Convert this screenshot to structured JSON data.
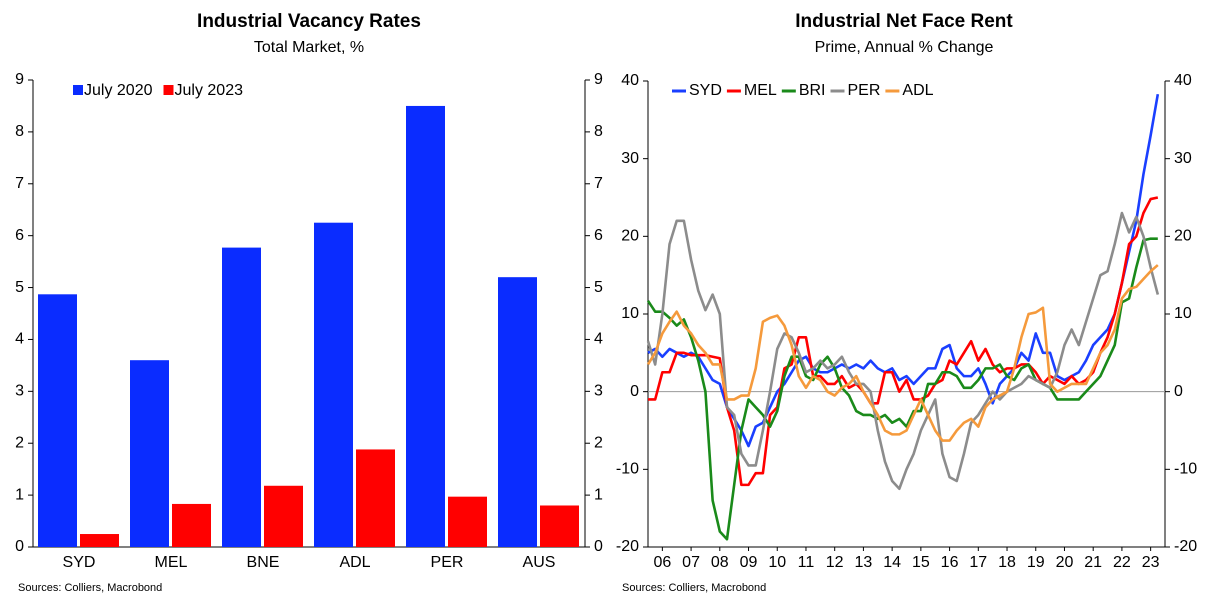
{
  "chart_data": [
    {
      "type": "bar",
      "title": "Industrial Vacancy Rates",
      "subtitle": "Total Market, %",
      "source": "Sources: Colliers, Macrobond",
      "categories": [
        "SYD",
        "MEL",
        "BNE",
        "ADL",
        "PER",
        "AUS"
      ],
      "series": [
        {
          "name": "July 2020",
          "color": "#0a2cff",
          "values": [
            4.87,
            3.6,
            5.77,
            6.25,
            8.5,
            5.2
          ]
        },
        {
          "name": "July 2023",
          "color": "#ff0000",
          "values": [
            0.25,
            0.83,
            1.18,
            1.88,
            0.97,
            0.8
          ]
        }
      ],
      "ylim": [
        0,
        9
      ],
      "yticks": [
        0,
        1,
        2,
        3,
        4,
        5,
        6,
        7,
        8,
        9
      ],
      "y2lim": [
        0,
        9
      ],
      "y2ticks": [
        0,
        1,
        2,
        3,
        4,
        5,
        6,
        7,
        8,
        9
      ],
      "legend": "upper left",
      "grid": false
    },
    {
      "type": "line",
      "title": "Industrial Net Face Rent",
      "subtitle": "Prime, Annual % Change",
      "source": "Sources: Colliers, Macrobond",
      "x": [
        2006,
        2006.25,
        2006.5,
        2006.75,
        2007,
        2007.25,
        2007.5,
        2007.75,
        2008,
        2008.25,
        2008.5,
        2008.75,
        2009,
        2009.25,
        2009.5,
        2009.75,
        2010,
        2010.25,
        2010.5,
        2010.75,
        2011,
        2011.25,
        2011.5,
        2011.75,
        2012,
        2012.25,
        2012.5,
        2012.75,
        2013,
        2013.25,
        2013.5,
        2013.75,
        2014,
        2014.25,
        2014.5,
        2014.75,
        2015,
        2015.25,
        2015.5,
        2015.75,
        2016,
        2016.25,
        2016.5,
        2016.75,
        2017,
        2017.25,
        2017.5,
        2017.75,
        2018,
        2018.25,
        2018.5,
        2018.75,
        2019,
        2019.25,
        2019.5,
        2019.75,
        2020,
        2020.25,
        2020.5,
        2020.75,
        2021,
        2021.25,
        2021.5,
        2021.75,
        2022,
        2022.25,
        2022.5,
        2022.75,
        2023,
        2023.25,
        2023.5,
        2023.75
      ],
      "series": [
        {
          "name": "SYD",
          "color": "#1a3fff",
          "values": [
            5,
            5.5,
            4.5,
            5.5,
            5,
            4.5,
            5,
            4.5,
            3,
            1.5,
            1,
            -2,
            -3.5,
            -5,
            -7,
            -4.5,
            -4,
            -2,
            0,
            1,
            2.5,
            4,
            4.5,
            3,
            2.5,
            2.5,
            3,
            3.5,
            3,
            3.5,
            3,
            4,
            3,
            2.5,
            3,
            1.5,
            2,
            1,
            2,
            3,
            3,
            5.5,
            6,
            3,
            2,
            2,
            3,
            1,
            -1.5,
            1,
            2,
            3,
            5,
            4,
            7.5,
            5,
            5,
            2,
            1.5,
            2,
            2.5,
            4,
            6,
            7,
            8,
            10,
            14,
            18,
            22,
            28,
            33,
            38.3
          ]
        },
        {
          "name": "MEL",
          "color": "#ff0000",
          "values": [
            -1,
            -1,
            2.5,
            2.5,
            5,
            5,
            4.7,
            4.7,
            4.7,
            4.5,
            4.3,
            -2,
            -5,
            -12,
            -12,
            -10.5,
            -10.5,
            -3,
            -2,
            3,
            3.5,
            7,
            7,
            2,
            2,
            1,
            1,
            2,
            0.5,
            1,
            0,
            -1.5,
            -1.5,
            2.5,
            2.5,
            0,
            1.5,
            -1,
            -1,
            -0.5,
            1,
            1.5,
            4,
            3.5,
            5,
            6.5,
            4,
            5.5,
            3.5,
            2.5,
            3,
            3,
            3.5,
            3.5,
            2.5,
            1,
            2,
            1.5,
            1,
            2,
            1,
            1.5,
            2.5,
            5,
            7,
            10,
            14,
            19,
            20,
            23,
            24.8,
            25
          ]
        },
        {
          "name": "BRI",
          "color": "#1a8a1a",
          "values": [
            11.7,
            10.3,
            10.3,
            9.5,
            8.5,
            9.3,
            7,
            4,
            0,
            -14,
            -18,
            -19,
            -12,
            -5,
            -1,
            -2,
            -3,
            -4.5,
            -2.5,
            2,
            4.5,
            4.5,
            2,
            1.5,
            3.5,
            4.5,
            3,
            0.5,
            -0.5,
            -2.5,
            -3,
            -3,
            -3.5,
            -3,
            -4,
            -3.5,
            -4.5,
            -2.5,
            -2.5,
            1,
            1,
            2.5,
            2.5,
            2,
            0.5,
            0.5,
            1.5,
            3,
            3,
            3.5,
            2,
            1.5,
            3,
            3.5,
            1.5,
            1,
            0.5,
            -1,
            -1,
            -1,
            -1,
            0,
            1,
            2,
            4,
            6,
            11.5,
            12,
            16,
            19.5,
            19.7,
            19.7
          ]
        },
        {
          "name": "PER",
          "color": "#8c8c8c",
          "values": [
            6.5,
            3.5,
            10,
            19,
            22,
            22,
            17,
            13,
            10.5,
            12.5,
            10,
            -2,
            -3,
            -8,
            -9.5,
            -9.5,
            -5,
            0,
            5.5,
            7.5,
            7,
            5,
            2.5,
            3,
            4,
            3,
            3.5,
            4.5,
            2.5,
            1,
            1,
            0,
            -5,
            -9,
            -11.5,
            -12.5,
            -10,
            -8,
            -5,
            -3,
            -1,
            -8,
            -11,
            -11.5,
            -8,
            -4,
            -3,
            -1.5,
            0,
            -1,
            0,
            0.5,
            1,
            2,
            1.5,
            1,
            0.5,
            2.5,
            6,
            8,
            6,
            9,
            12,
            15,
            15.5,
            19,
            23,
            20.5,
            22.5,
            20,
            16,
            12.5
          ]
        },
        {
          "name": "ADL",
          "color": "#f59a3c",
          "values": [
            3.5,
            5,
            7.5,
            9,
            10.3,
            8.5,
            7.5,
            6,
            5,
            3.5,
            3.5,
            -1,
            -1,
            -0.5,
            -0.5,
            3,
            9,
            9.5,
            9.8,
            8.5,
            6,
            2,
            0.5,
            2,
            1.5,
            0,
            -0.5,
            0.5,
            1,
            2,
            0,
            -1.5,
            -3,
            -5,
            -5.5,
            -5.5,
            -5,
            -3,
            -1,
            -3,
            -5,
            -6.3,
            -6.3,
            -5,
            -4,
            -3.5,
            -4.5,
            -2,
            -1,
            -0.5,
            0,
            3,
            7,
            10,
            10.2,
            10.8,
            1,
            0,
            0.5,
            1,
            1,
            1,
            3,
            5,
            6,
            8,
            12,
            13.2,
            13.5,
            14.5,
            15.5,
            16.3
          ]
        }
      ],
      "xlim": [
        2006,
        2024
      ],
      "xticks": [
        {
          "value": 2006.5,
          "label": "06"
        },
        {
          "value": 2007.5,
          "label": "07"
        },
        {
          "value": 2008.5,
          "label": "08"
        },
        {
          "value": 2009.5,
          "label": "09"
        },
        {
          "value": 2010.5,
          "label": "10"
        },
        {
          "value": 2011.5,
          "label": "11"
        },
        {
          "value": 2012.5,
          "label": "12"
        },
        {
          "value": 2013.5,
          "label": "13"
        },
        {
          "value": 2014.5,
          "label": "14"
        },
        {
          "value": 2015.5,
          "label": "15"
        },
        {
          "value": 2016.5,
          "label": "16"
        },
        {
          "value": 2017.5,
          "label": "17"
        },
        {
          "value": 2018.5,
          "label": "18"
        },
        {
          "value": 2019.5,
          "label": "19"
        },
        {
          "value": 2020.5,
          "label": "20"
        },
        {
          "value": 2021.5,
          "label": "21"
        },
        {
          "value": 2022.5,
          "label": "22"
        },
        {
          "value": 2023.5,
          "label": "23"
        }
      ],
      "ylim": [
        -20,
        40
      ],
      "yticks": [
        -20,
        -10,
        0,
        10,
        20,
        30,
        40
      ],
      "y2lim": [
        -20,
        40
      ],
      "y2ticks": [
        -20,
        -10,
        0,
        10,
        20,
        30,
        40
      ],
      "legend": "upper left",
      "zero_line": true,
      "grid": false
    }
  ]
}
